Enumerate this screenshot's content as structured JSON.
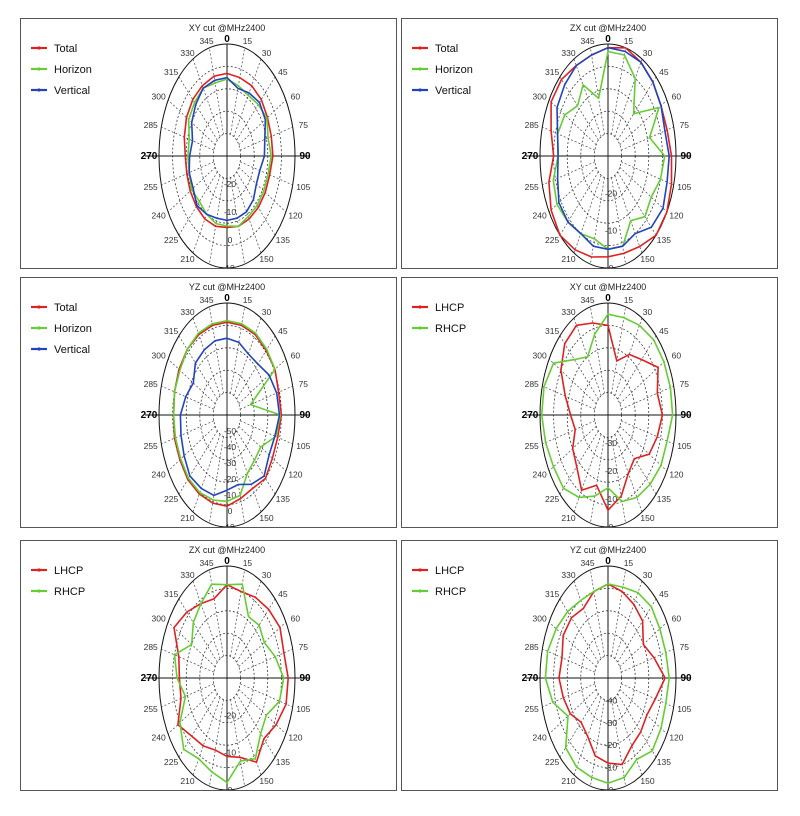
{
  "chart_data": [
    {
      "type": "polar-line",
      "title": "XY cut @MHz2400",
      "theta_labels": [
        "0",
        "15",
        "30",
        "45",
        "60",
        "75",
        "90",
        "105",
        "120",
        "135",
        "150",
        "165",
        "180",
        "195",
        "210",
        "225",
        "240",
        "255",
        "270",
        "285",
        "300",
        "315",
        "330",
        "345"
      ],
      "radial_tick_labels": [
        "-20",
        "-10",
        "0",
        "10"
      ],
      "radial_range": [
        -30,
        10
      ],
      "legend_position": "top-left",
      "theta_deg": [
        0,
        15,
        30,
        45,
        60,
        75,
        90,
        105,
        120,
        135,
        150,
        165,
        180,
        195,
        210,
        225,
        240,
        255,
        270,
        285,
        300,
        315,
        330,
        345
      ],
      "series": [
        {
          "name": "Total",
          "color": "#dd2222",
          "values": [
            -0.5,
            -1,
            -1,
            -1.5,
            -2.5,
            -3,
            -3,
            -4,
            -4,
            -4,
            -4,
            -4,
            -4.5,
            -4,
            -4,
            -4.5,
            -5,
            -5.5,
            -5.5,
            -4,
            -2.5,
            -1.5,
            -1,
            -0.5
          ]
        },
        {
          "name": "Horizon",
          "color": "#66cc33",
          "values": [
            -2.5,
            -4,
            -5,
            -4,
            -3,
            -5,
            -4,
            -5,
            -5,
            -5,
            -5,
            -4,
            -5,
            -5,
            -6,
            -7,
            -6,
            -7,
            -7,
            -7,
            -4,
            -3,
            -2,
            -3
          ]
        },
        {
          "name": "Vertical",
          "color": "#2244bb",
          "values": [
            -2,
            -5,
            -4,
            -3,
            -4,
            -7,
            -8,
            -10,
            -10,
            -8,
            -7,
            -7,
            -7,
            -7,
            -6,
            -5,
            -7,
            -7,
            -8,
            -9,
            -6,
            -4,
            -2,
            -2
          ]
        }
      ]
    },
    {
      "type": "polar-line",
      "title": "ZX cut @MHz2400",
      "theta_labels": [
        "0",
        "15",
        "30",
        "45",
        "60",
        "75",
        "90",
        "105",
        "120",
        "135",
        "150",
        "165",
        "180",
        "195",
        "210",
        "225",
        "240",
        "255",
        "270",
        "285",
        "300",
        "315",
        "330",
        "345"
      ],
      "radial_tick_labels": [
        "-20",
        "-10",
        "0"
      ],
      "radial_range": [
        -30,
        0
      ],
      "legend_position": "top-left",
      "theta_deg": [
        0,
        15,
        30,
        45,
        60,
        75,
        90,
        105,
        120,
        135,
        150,
        165,
        180,
        195,
        210,
        225,
        240,
        255,
        270,
        285,
        300,
        315,
        330,
        345
      ],
      "series": [
        {
          "name": "Total",
          "color": "#dd2222",
          "values": [
            -1,
            0,
            -1,
            -2,
            -3,
            -3,
            -2,
            -1,
            0,
            0,
            -2,
            -3,
            -3,
            -2,
            -1,
            0,
            -1,
            -3,
            -6,
            -4,
            -1,
            -1,
            -2,
            -2
          ]
        },
        {
          "name": "Horizon",
          "color": "#66cc33",
          "values": [
            -2,
            -2,
            -6,
            -14,
            -4,
            -11,
            -5,
            -6,
            -8,
            -7,
            -10,
            -5,
            -5,
            -7,
            -6,
            -5,
            -4,
            -5,
            -8,
            -7,
            -8,
            -11,
            -8,
            -14
          ]
        },
        {
          "name": "Vertical",
          "color": "#2244bb",
          "values": [
            -1,
            -1,
            -1,
            -2,
            -3,
            -4,
            -3,
            -3,
            -2,
            -3,
            -6,
            -5,
            -5,
            -5,
            -6,
            -5,
            -5,
            -7,
            -8,
            -7,
            -4,
            -3,
            -2,
            -2
          ]
        }
      ]
    },
    {
      "type": "polar-line",
      "title": "YZ cut @MHz2400",
      "theta_labels": [
        "0",
        "15",
        "30",
        "45",
        "60",
        "75",
        "90",
        "105",
        "120",
        "135",
        "150",
        "165",
        "180",
        "195",
        "210",
        "225",
        "240",
        "255",
        "270",
        "285",
        "300",
        "315",
        "330",
        "345"
      ],
      "radial_tick_labels": [
        "-50",
        "-40",
        "-30",
        "-20",
        "-10",
        "0",
        "10"
      ],
      "radial_range": [
        -60,
        10
      ],
      "legend_position": "top-left",
      "theta_deg": [
        0,
        15,
        30,
        45,
        60,
        75,
        90,
        105,
        120,
        135,
        150,
        165,
        180,
        195,
        210,
        225,
        240,
        255,
        270,
        285,
        300,
        315,
        330,
        345
      ],
      "series": [
        {
          "name": "Total",
          "color": "#dd2222",
          "values": [
            -2,
            -2,
            -2,
            -3,
            -3,
            -5,
            -4,
            -6,
            -6,
            -4,
            -7,
            -6,
            -3,
            -3,
            -3,
            -3,
            -4,
            -4,
            -5,
            -4,
            -3,
            -2,
            -2,
            -2
          ]
        },
        {
          "name": "Horizon",
          "color": "#66cc33",
          "values": [
            -1,
            -1,
            -1,
            -2,
            -3,
            -35,
            -5,
            -8,
            -20,
            -20,
            -18,
            -8,
            -6,
            -5,
            -4,
            -4,
            -5,
            -5,
            -5,
            -4,
            -4,
            -2,
            -1,
            -1
          ]
        },
        {
          "name": "Vertical",
          "color": "#2244bb",
          "values": [
            -12,
            -13,
            -16,
            -15,
            -10,
            -7,
            -6,
            -9,
            -10,
            -6,
            -10,
            -15,
            -13,
            -8,
            -7,
            -6,
            -9,
            -11,
            -12,
            -16,
            -20,
            -14,
            -13,
            -12
          ]
        }
      ]
    },
    {
      "type": "polar-line",
      "title": "XY cut @MHz2400",
      "theta_labels": [
        "0",
        "15",
        "30",
        "45",
        "60",
        "75",
        "90",
        "105",
        "120",
        "135",
        "150",
        "165",
        "180",
        "195",
        "210",
        "225",
        "240",
        "255",
        "270",
        "285",
        "300",
        "315",
        "330",
        "345"
      ],
      "radial_tick_labels": [
        "-30",
        "-20",
        "-10",
        "0"
      ],
      "radial_range": [
        -40,
        0
      ],
      "legend_position": "top-left",
      "theta_deg": [
        0,
        15,
        30,
        45,
        60,
        75,
        90,
        105,
        120,
        135,
        150,
        165,
        180,
        195,
        210,
        225,
        240,
        255,
        270,
        285,
        300,
        315,
        330,
        345
      ],
      "series": [
        {
          "name": "LHCP",
          "color": "#dd2222",
          "values": [
            -8,
            -20,
            -15,
            -12,
            -6,
            -10,
            -8,
            -10,
            -12,
            -18,
            -16,
            -10,
            -6,
            -14,
            -9,
            -14,
            -16,
            -20,
            -18,
            -14,
            -8,
            -4,
            -3,
            -6
          ]
        },
        {
          "name": "RHCP",
          "color": "#66cc33",
          "values": [
            -4,
            -4,
            -3,
            -2,
            -2,
            -2,
            -2,
            -4,
            -4,
            -5,
            -6,
            -8,
            -14,
            -10,
            -6,
            -3,
            -3,
            -2,
            -1,
            -1,
            -3,
            -12,
            -16,
            -10
          ]
        }
      ]
    },
    {
      "type": "polar-line",
      "title": "ZX cut @MHz2400",
      "theta_labels": [
        "0",
        "15",
        "30",
        "45",
        "60",
        "75",
        "90",
        "105",
        "120",
        "135",
        "150",
        "165",
        "180",
        "195",
        "210",
        "225",
        "240",
        "255",
        "270",
        "285",
        "300",
        "315",
        "330",
        "345"
      ],
      "radial_tick_labels": [
        "-20",
        "-10",
        "0"
      ],
      "radial_range": [
        -30,
        0
      ],
      "legend_position": "top-left",
      "theta_deg": [
        0,
        15,
        30,
        45,
        60,
        75,
        90,
        105,
        120,
        135,
        150,
        165,
        180,
        195,
        210,
        225,
        240,
        255,
        270,
        285,
        300,
        315,
        330,
        345
      ],
      "series": [
        {
          "name": "LHCP",
          "color": "#dd2222",
          "values": [
            -5,
            -6,
            -5,
            -4,
            -3,
            -4,
            -3,
            -3,
            -5,
            -7,
            -4,
            -8,
            -9,
            -10,
            -9,
            -8,
            -5,
            -9,
            -9,
            -8,
            -3,
            -5,
            -7,
            -8
          ]
        },
        {
          "name": "RHCP",
          "color": "#66cc33",
          "values": [
            -5,
            -4,
            -11,
            -10,
            -11,
            -8,
            -5,
            -6,
            -10,
            -9,
            -5,
            -7,
            -2,
            -4,
            -5,
            -3,
            -6,
            -11,
            -8,
            -6,
            -12,
            -9,
            -7,
            -4
          ]
        }
      ]
    },
    {
      "type": "polar-line",
      "title": "YZ cut @MHz2400",
      "theta_labels": [
        "0",
        "15",
        "30",
        "45",
        "60",
        "75",
        "90",
        "105",
        "120",
        "135",
        "150",
        "165",
        "180",
        "195",
        "210",
        "225",
        "240",
        "255",
        "270",
        "285",
        "300",
        "315",
        "330",
        "345"
      ],
      "radial_tick_labels": [
        "-40",
        "-30",
        "-20",
        "-10",
        "0"
      ],
      "radial_range": [
        -50,
        0
      ],
      "legend_position": "top-left",
      "theta_deg": [
        0,
        15,
        30,
        45,
        60,
        75,
        90,
        105,
        120,
        135,
        150,
        165,
        180,
        195,
        210,
        225,
        240,
        255,
        270,
        285,
        300,
        315,
        330,
        345
      ],
      "series": [
        {
          "name": "LHCP",
          "color": "#dd2222",
          "values": [
            -8,
            -10,
            -12,
            -14,
            -20,
            -15,
            -8,
            -14,
            -17,
            -16,
            -15,
            -10,
            -12,
            -14,
            -20,
            -22,
            -18,
            -16,
            -14,
            -15,
            -12,
            -12,
            -14,
            -10
          ]
        },
        {
          "name": "RHCP",
          "color": "#66cc33",
          "values": [
            -8,
            -8,
            -6,
            -5,
            -6,
            -6,
            -5,
            -6,
            -5,
            -4,
            -8,
            -4,
            -3,
            -4,
            -4,
            -6,
            -16,
            -8,
            -4,
            -4,
            -6,
            -8,
            -10,
            -10
          ]
        }
      ]
    }
  ]
}
